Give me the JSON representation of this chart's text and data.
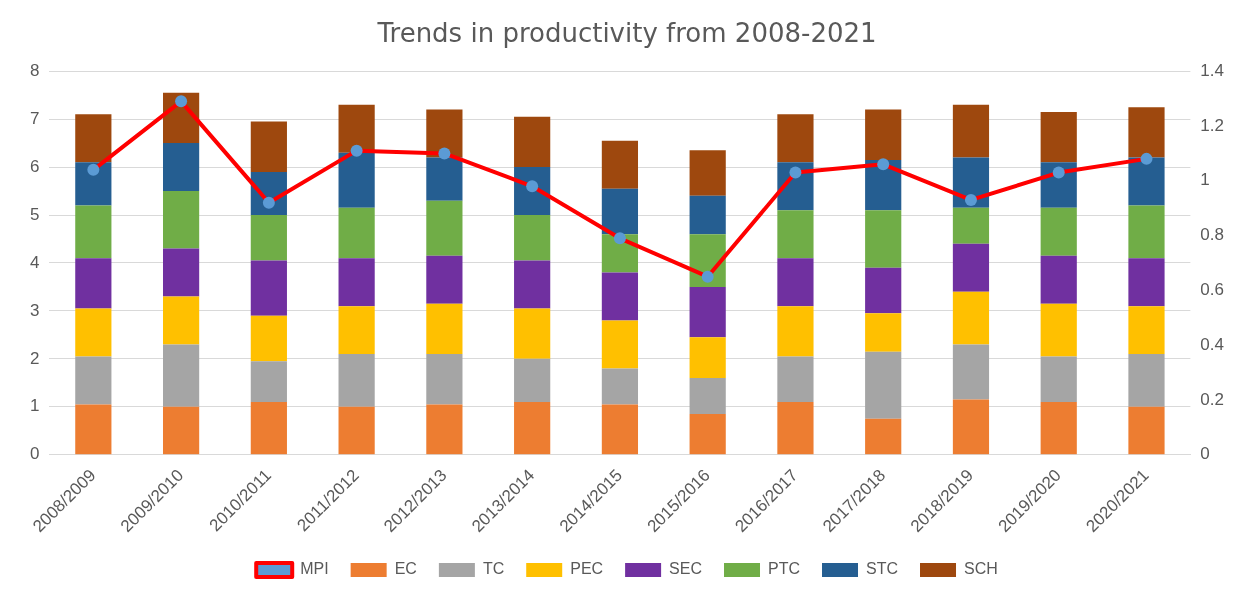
{
  "chart_data": {
    "type": "bar",
    "title": "Trends in productivity from 2008-2021",
    "stacked": true,
    "categories": [
      "2008/2009",
      "2009/2010",
      "2010/2011",
      "2011/2012",
      "2012/2013",
      "2013/2014",
      "2014/2015",
      "2015/2016",
      "2016/2017",
      "2017/2018",
      "2018/2019",
      "2019/2020",
      "2020/2021"
    ],
    "series": [
      {
        "name": "EC",
        "color": "#ed7d31",
        "values": [
          1.05,
          1.0,
          1.1,
          1.0,
          1.05,
          1.1,
          1.05,
          0.85,
          1.1,
          0.75,
          1.15,
          1.1,
          1.0
        ]
      },
      {
        "name": "TC",
        "color": "#a5a5a5",
        "values": [
          1.0,
          1.3,
          0.85,
          1.1,
          1.05,
          0.9,
          0.75,
          0.75,
          0.95,
          1.4,
          1.15,
          0.95,
          1.1
        ]
      },
      {
        "name": "PEC",
        "color": "#ffc000",
        "values": [
          1.0,
          1.0,
          0.95,
          1.0,
          1.05,
          1.05,
          1.0,
          0.85,
          1.05,
          0.8,
          1.1,
          1.1,
          1.0
        ]
      },
      {
        "name": "SEC",
        "color": "#7030a0",
        "values": [
          1.05,
          1.0,
          1.15,
          1.0,
          1.0,
          1.0,
          1.0,
          1.05,
          1.0,
          0.95,
          1.0,
          1.0,
          1.0
        ]
      },
      {
        "name": "PTC",
        "color": "#70ad47",
        "values": [
          1.1,
          1.2,
          0.95,
          1.05,
          1.15,
          0.95,
          0.8,
          1.1,
          1.0,
          1.2,
          0.75,
          1.0,
          1.1
        ]
      },
      {
        "name": "STC",
        "color": "#255e91",
        "values": [
          0.9,
          1.0,
          0.9,
          1.15,
          0.9,
          1.0,
          0.95,
          0.8,
          1.0,
          1.05,
          1.05,
          0.95,
          1.0
        ]
      },
      {
        "name": "SCH",
        "color": "#9e480e",
        "values": [
          1.0,
          1.05,
          1.05,
          1.0,
          1.0,
          1.05,
          1.0,
          0.95,
          1.0,
          1.05,
          1.1,
          1.05,
          1.05
        ]
      },
      {
        "name": "MPI",
        "type": "line",
        "axis": "y2",
        "color": "#ff0000",
        "marker": "circle",
        "line_style": "solid",
        "values": [
          1.04,
          1.29,
          0.92,
          1.11,
          1.1,
          0.98,
          0.79,
          0.65,
          1.03,
          1.06,
          0.93,
          1.03,
          1.08
        ]
      }
    ],
    "ylim": [
      0,
      8
    ],
    "yticks": [
      0,
      1,
      2,
      3,
      4,
      5,
      6,
      7,
      8
    ],
    "y2lim": [
      0,
      1.4
    ],
    "y2ticks": [
      0,
      0.2,
      0.4,
      0.6,
      0.8,
      1,
      1.2,
      1.4
    ],
    "grid": "y",
    "legend": "bottom"
  }
}
